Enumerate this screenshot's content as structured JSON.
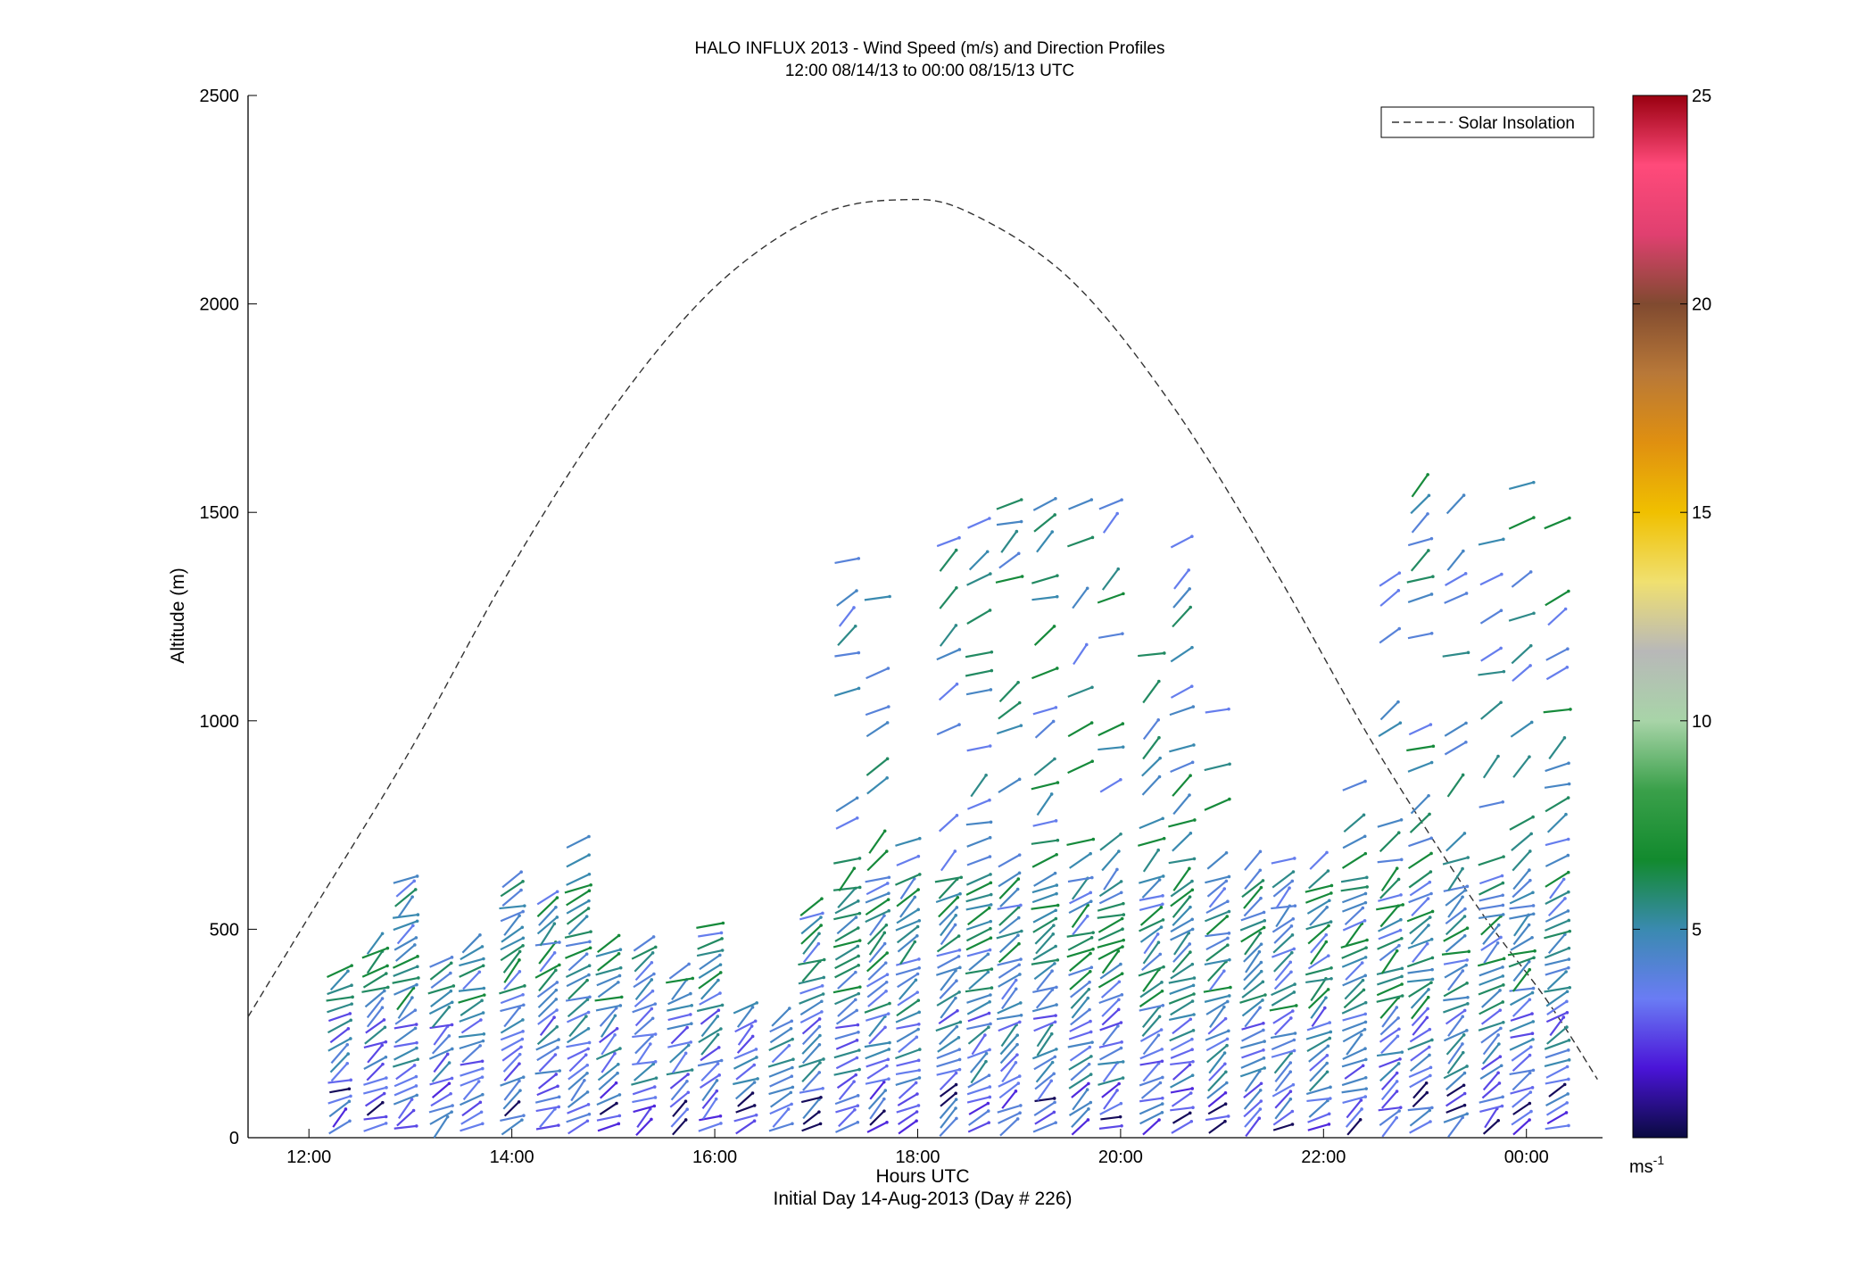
{
  "chart_data": {
    "type": "scatter",
    "title": "HALO INFLUX 2013 - Wind Speed (m/s) and Direction Profiles",
    "subtitle": "12:00 08/14/13 to 00:00 08/15/13  UTC",
    "xlabel": "Hours UTC",
    "xlabel2": "Initial Day 14-Aug-2013 (Day # 226)",
    "ylabel": "Altitude (m)",
    "xlim_hours": [
      11.4,
      24.75
    ],
    "ylim": [
      0,
      2500
    ],
    "x_ticks": [
      {
        "value": 12,
        "label": "12:00"
      },
      {
        "value": 14,
        "label": "14:00"
      },
      {
        "value": 16,
        "label": "16:00"
      },
      {
        "value": 18,
        "label": "18:00"
      },
      {
        "value": 20,
        "label": "20:00"
      },
      {
        "value": 22,
        "label": "22:00"
      },
      {
        "value": 24,
        "label": "00:00"
      }
    ],
    "y_ticks": [
      0,
      500,
      1000,
      1500,
      2000,
      2500
    ],
    "grid": false,
    "legend": {
      "position": "top-right",
      "entries": [
        "Solar Insolation"
      ]
    },
    "colorbar": {
      "min": 0,
      "max": 25,
      "ticks": [
        5,
        10,
        15,
        20,
        25
      ],
      "unit_base": "ms",
      "unit_exp": "-1",
      "colors": [
        "#0a0a40",
        "#4a14d8",
        "#6a7cf4",
        "#3a8ab0",
        "#128a2e",
        "#3aa04a",
        "#a8d4a8",
        "#b8b8b8",
        "#f0e070",
        "#f0c000",
        "#e09010",
        "#b87838",
        "#804a30",
        "#e04070",
        "#ff4a7a",
        "#9a0010"
      ]
    },
    "solar_insolation": {
      "peak_hour": 17.85,
      "peak_altitude": 2250,
      "points": [
        [
          11.4,
          290
        ],
        [
          12.0,
          530
        ],
        [
          13.0,
          930
        ],
        [
          14.0,
          1370
        ],
        [
          15.0,
          1750
        ],
        [
          16.0,
          2040
        ],
        [
          17.0,
          2210
        ],
        [
          17.85,
          2250
        ],
        [
          18.5,
          2220
        ],
        [
          19.5,
          2060
        ],
        [
          20.5,
          1760
        ],
        [
          21.5,
          1370
        ],
        [
          22.5,
          940
        ],
        [
          23.5,
          560
        ],
        [
          24.2,
          330
        ],
        [
          24.7,
          140
        ]
      ]
    },
    "profile_times": [
      12.3,
      12.65,
      12.95,
      13.3,
      13.6,
      14.0,
      14.35,
      14.65,
      14.95,
      15.3,
      15.65,
      15.95,
      16.3,
      16.65,
      16.95,
      17.3,
      17.6,
      17.9,
      18.3,
      18.6,
      18.9,
      19.25,
      19.6,
      19.9,
      20.3,
      20.6,
      20.95,
      21.3,
      21.6,
      21.95,
      22.3,
      22.65,
      22.95,
      23.3,
      23.65,
      23.95,
      24.3
    ],
    "profile_tops": [
      400,
      470,
      640,
      430,
      470,
      640,
      580,
      740,
      480,
      470,
      420,
      530,
      320,
      300,
      560,
      1400,
      1400,
      740,
      1460,
      1500,
      1560,
      1540,
      1600,
      1600,
      1280,
      1500,
      1040,
      820,
      680,
      700,
      1020,
      1360,
      1590,
      1560,
      1560,
      1600,
      1500
    ],
    "speed_samples_ms": [
      0.3,
      2.0,
      2.5,
      3.0,
      3.5,
      4.0,
      4.5,
      5.0,
      5.5,
      6.0,
      6.5,
      7.0,
      8.0,
      9.0,
      10.0
    ],
    "notes_visible": []
  }
}
